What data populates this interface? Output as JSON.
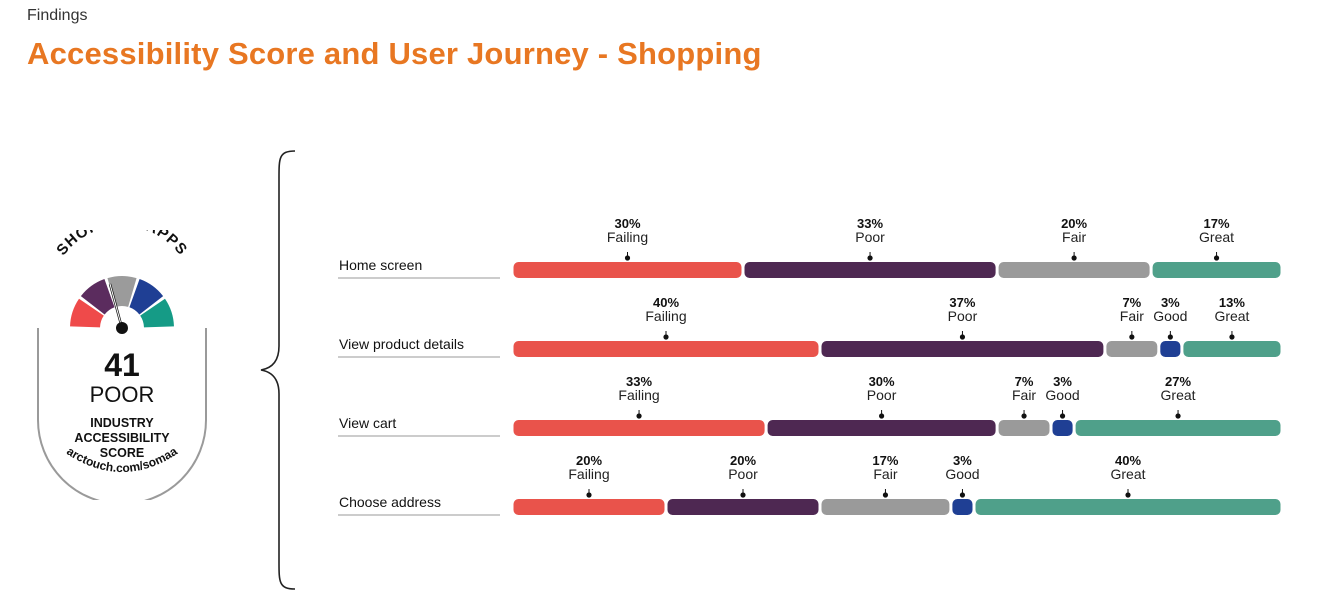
{
  "header": {
    "kicker": "Findings",
    "title": "Accessibility Score and User Journey - Shopping"
  },
  "badge": {
    "arc_text": "SHOPPING APPS",
    "score": "41",
    "rating": "POOR",
    "label_line1": "INDUSTRY",
    "label_line2": "ACCESSIBILITY",
    "label_line3": "SCORE",
    "url": "arctouch.com/somaa",
    "gauge_colors": [
      "#ef4a4a",
      "#5b2c5e",
      "#9b9b9b",
      "#1f3f94",
      "#159b86"
    ]
  },
  "colors": {
    "Failing": "#e9534b",
    "Poor": "#4e2852",
    "Fair": "#9a9a9a",
    "Good": "#1f3f94",
    "Great": "#4fa08a"
  },
  "chart_data": {
    "type": "bar",
    "orientation": "horizontal-stacked-100",
    "categories": [
      "Home screen",
      "View product details",
      "View cart",
      "Choose address"
    ],
    "rows": [
      {
        "label": "Home screen",
        "segments": [
          {
            "name": "Failing",
            "value": 30,
            "label": "30%"
          },
          {
            "name": "Poor",
            "value": 33,
            "label": "33%"
          },
          {
            "name": "Fair",
            "value": 20,
            "label": "20%"
          },
          {
            "name": "Great",
            "value": 17,
            "label": "17%"
          }
        ]
      },
      {
        "label": "View product details",
        "segments": [
          {
            "name": "Failing",
            "value": 40,
            "label": "40%"
          },
          {
            "name": "Poor",
            "value": 37,
            "label": "37%"
          },
          {
            "name": "Fair",
            "value": 7,
            "label": "7%"
          },
          {
            "name": "Good",
            "value": 3,
            "label": "3%"
          },
          {
            "name": "Great",
            "value": 13,
            "label": "13%"
          }
        ]
      },
      {
        "label": "View cart",
        "segments": [
          {
            "name": "Failing",
            "value": 33,
            "label": "33%"
          },
          {
            "name": "Poor",
            "value": 30,
            "label": "30%"
          },
          {
            "name": "Fair",
            "value": 7,
            "label": "7%"
          },
          {
            "name": "Good",
            "value": 3,
            "label": "3%"
          },
          {
            "name": "Great",
            "value": 27,
            "label": "27%"
          }
        ]
      },
      {
        "label": "Choose address",
        "segments": [
          {
            "name": "Failing",
            "value": 20,
            "label": "20%"
          },
          {
            "name": "Poor",
            "value": 20,
            "label": "20%"
          },
          {
            "name": "Fair",
            "value": 17,
            "label": "17%"
          },
          {
            "name": "Good",
            "value": 3,
            "label": "3%"
          },
          {
            "name": "Great",
            "value": 40,
            "label": "40%"
          }
        ]
      }
    ]
  }
}
